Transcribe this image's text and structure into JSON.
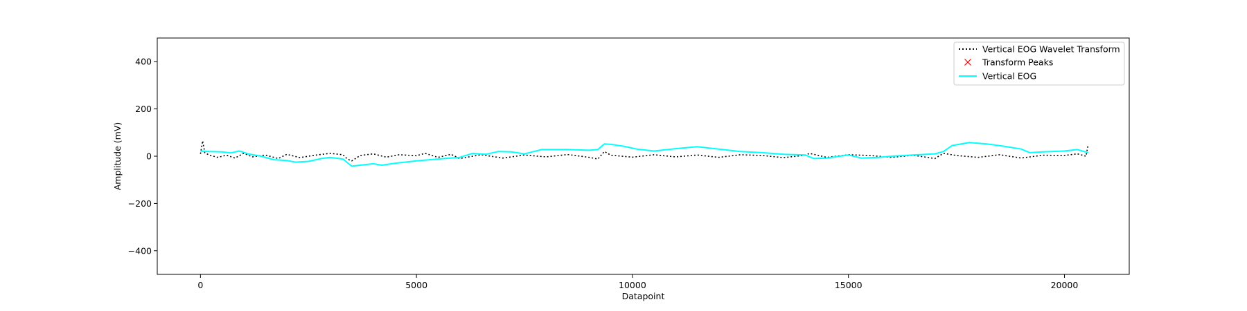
{
  "chart_data": {
    "type": "line",
    "title": "",
    "xlabel": "Datapoint",
    "ylabel": "Amplitude (mV)",
    "xlim": [
      -1000,
      21500
    ],
    "ylim": [
      -500,
      500
    ],
    "xticks": [
      0,
      5000,
      10000,
      15000,
      20000
    ],
    "xtick_labels": [
      "0",
      "5000",
      "10000",
      "15000",
      "20000"
    ],
    "yticks": [
      -400,
      -200,
      0,
      200,
      400
    ],
    "ytick_labels": [
      "−400",
      "−200",
      "0",
      "200",
      "400"
    ],
    "grid": false,
    "legend_position": "top-right",
    "series": [
      {
        "name": "Vertical EOG Wavelet Transform",
        "color": "#000000",
        "style": "dotted",
        "x": [
          0,
          50,
          100,
          200,
          400,
          600,
          800,
          1000,
          1200,
          1500,
          1800,
          2000,
          2300,
          2600,
          3000,
          3300,
          3400,
          3500,
          3700,
          4000,
          4300,
          4600,
          5000,
          5200,
          5500,
          5800,
          6000,
          6500,
          7000,
          7500,
          8000,
          8500,
          9000,
          9200,
          9350,
          9500,
          10000,
          10500,
          11000,
          11500,
          12000,
          12500,
          13000,
          13500,
          14000,
          14100,
          14500,
          15000,
          15500,
          16000,
          16500,
          17000,
          17200,
          17500,
          18000,
          18500,
          19000,
          19500,
          20000,
          20300,
          20500,
          20550
        ],
        "values": [
          10,
          65,
          15,
          5,
          -5,
          4,
          -8,
          12,
          -3,
          5,
          -10,
          8,
          -6,
          3,
          12,
          6,
          -12,
          -20,
          3,
          10,
          -4,
          6,
          2,
          12,
          -5,
          8,
          -10,
          6,
          -8,
          5,
          -3,
          7,
          -5,
          -12,
          20,
          4,
          -4,
          6,
          -3,
          5,
          -5,
          6,
          3,
          -6,
          4,
          12,
          -5,
          6,
          3,
          -5,
          4,
          -10,
          12,
          3,
          -5,
          6,
          -8,
          4,
          3,
          10,
          0,
          50
        ]
      },
      {
        "name": "Transform Peaks",
        "color": "#ff0000",
        "style": "x-markers",
        "x": [],
        "values": []
      },
      {
        "name": "Vertical EOG",
        "color": "#00ffff",
        "style": "solid",
        "x": [
          0,
          200,
          500,
          700,
          900,
          1100,
          1400,
          1700,
          2000,
          2200,
          2500,
          2800,
          3000,
          3300,
          3500,
          3700,
          4000,
          4200,
          4500,
          5000,
          5500,
          6000,
          6300,
          6600,
          6900,
          7200,
          7500,
          7900,
          8500,
          9000,
          9200,
          9350,
          9500,
          9800,
          10100,
          10500,
          11000,
          11500,
          12000,
          12500,
          13000,
          13500,
          14000,
          14200,
          14500,
          15000,
          15300,
          15700,
          16000,
          16500,
          17000,
          17200,
          17400,
          17800,
          18200,
          18600,
          19000,
          19200,
          19500,
          20000,
          20300,
          20550
        ],
        "values": [
          22,
          20,
          18,
          14,
          22,
          10,
          0,
          -15,
          -18,
          -25,
          -22,
          -10,
          -5,
          -12,
          -42,
          -38,
          -32,
          -38,
          -30,
          -20,
          -12,
          -5,
          12,
          8,
          20,
          18,
          10,
          28,
          28,
          25,
          28,
          52,
          50,
          42,
          30,
          22,
          32,
          40,
          30,
          20,
          15,
          8,
          5,
          -10,
          -8,
          5,
          -8,
          -5,
          0,
          5,
          10,
          20,
          45,
          58,
          52,
          42,
          30,
          15,
          18,
          22,
          28,
          15
        ]
      }
    ]
  }
}
